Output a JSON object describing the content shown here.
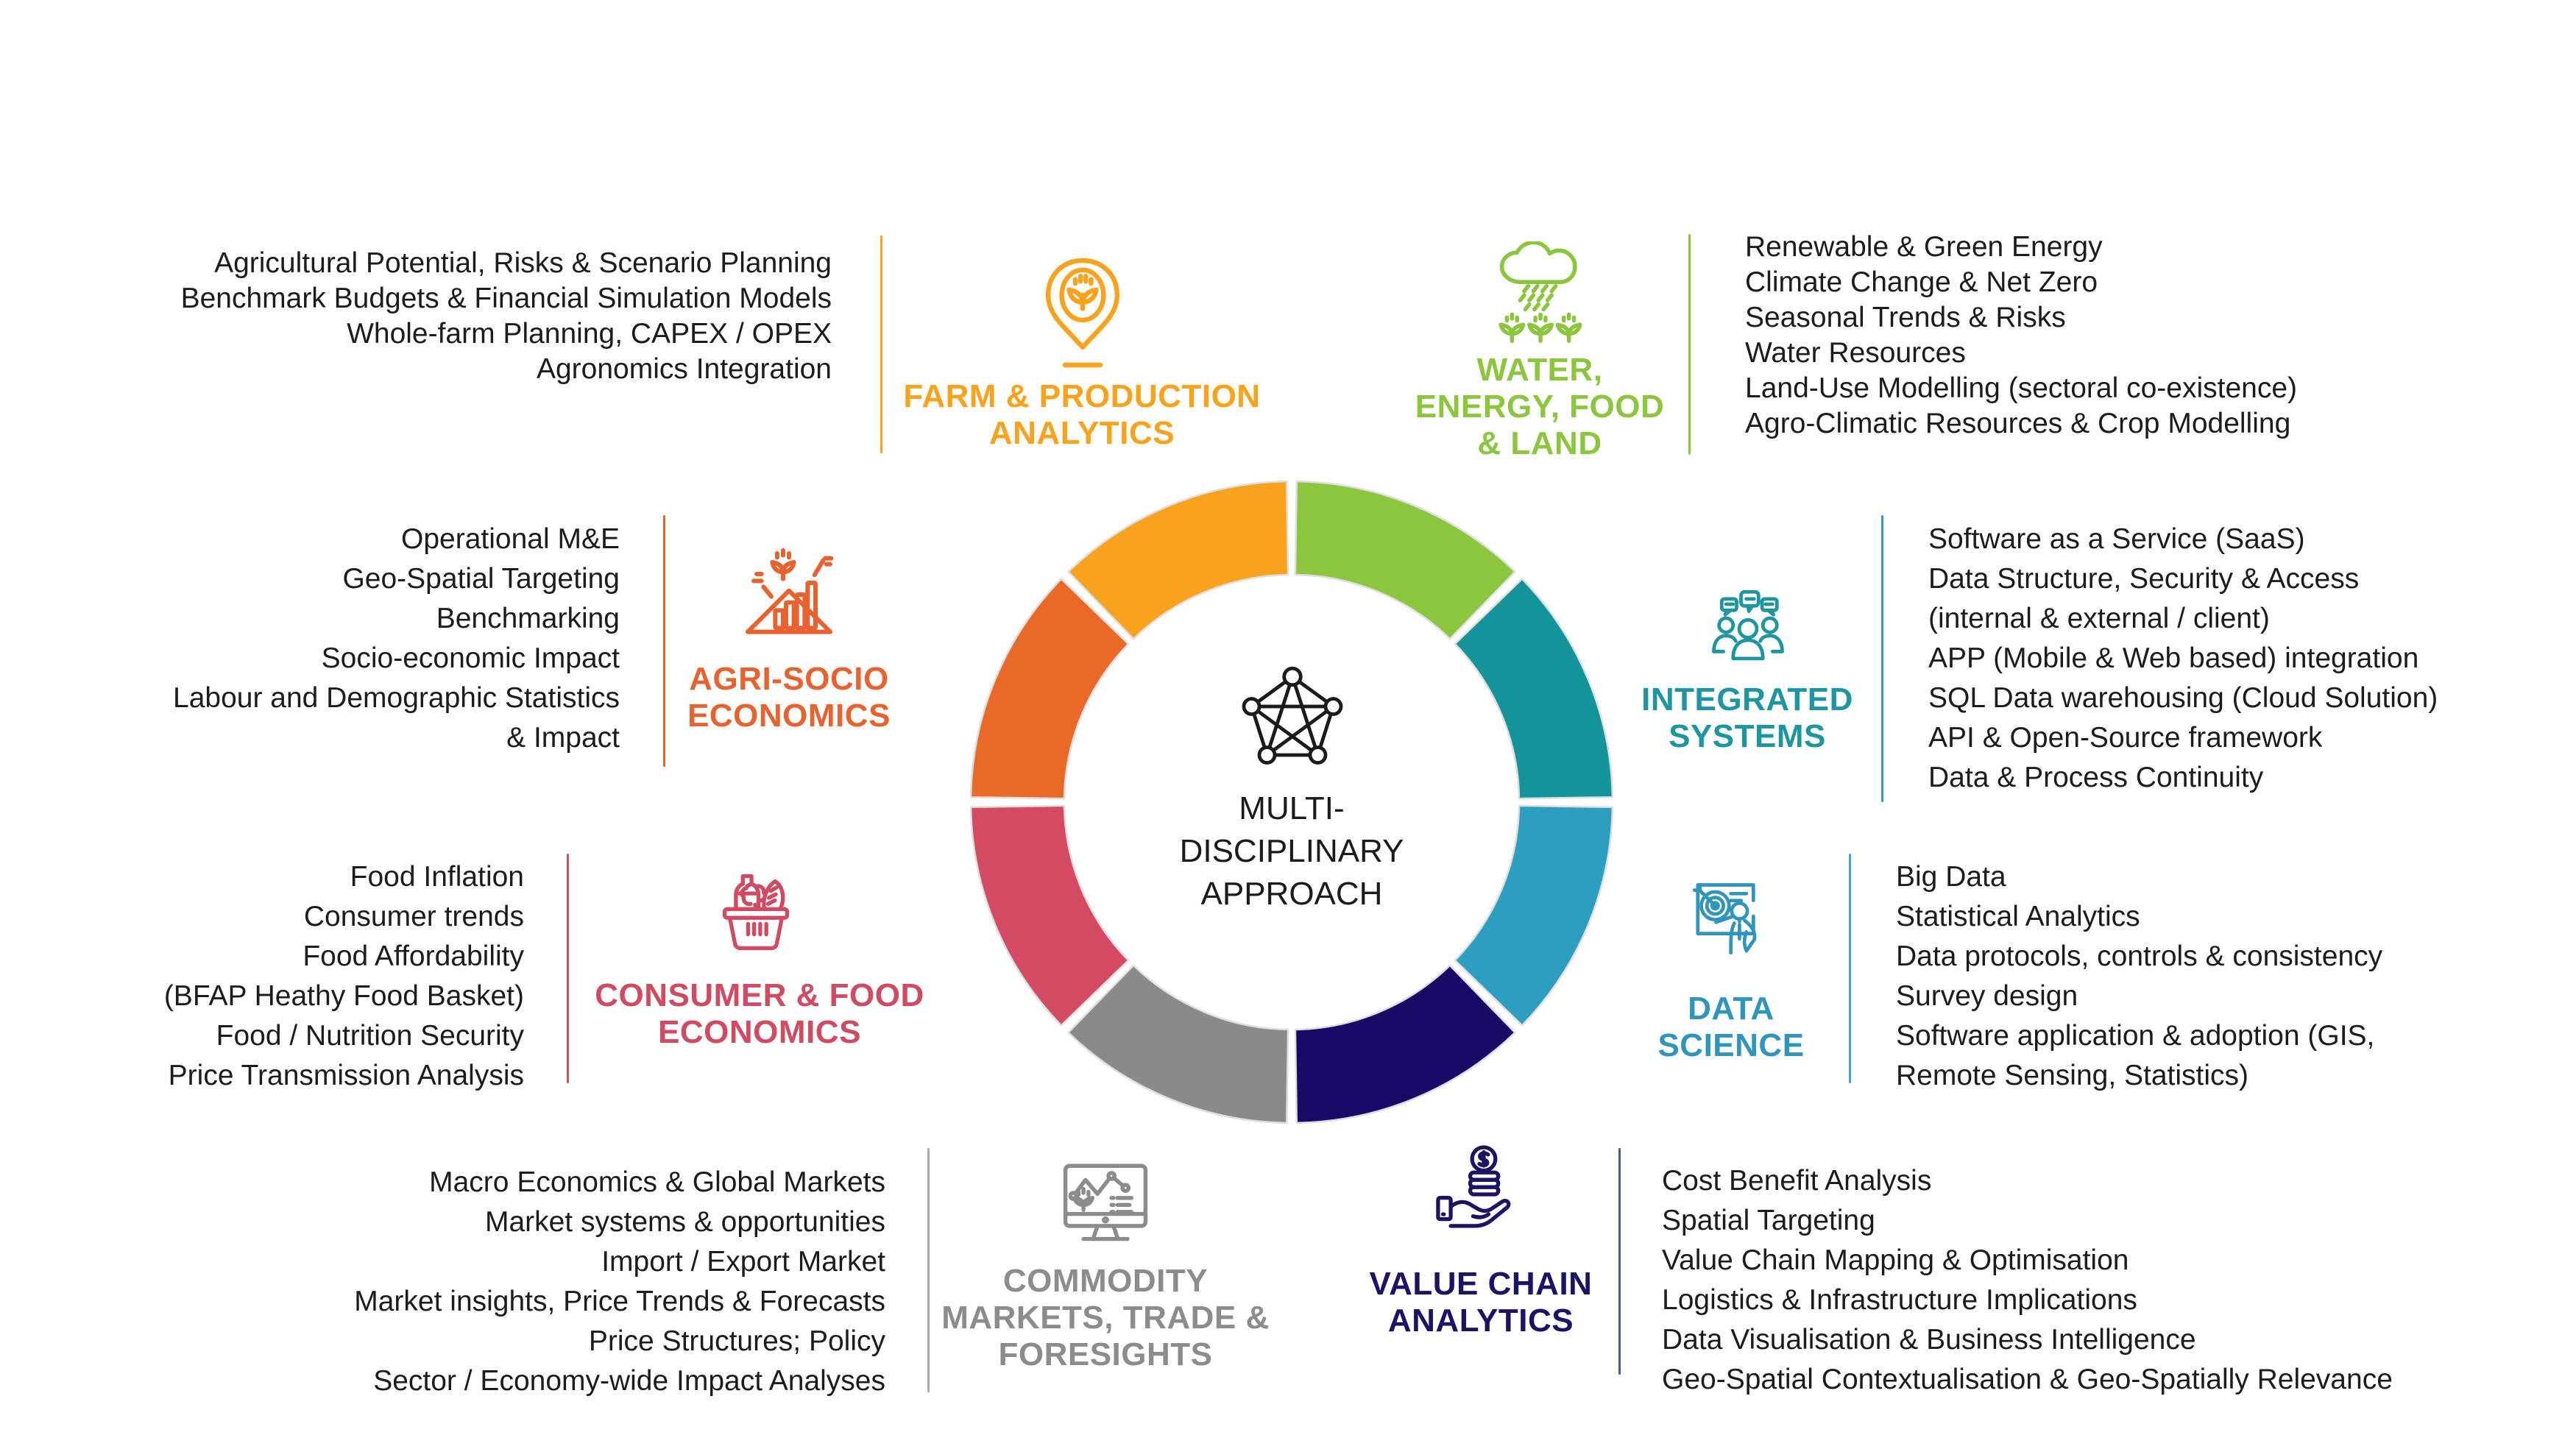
{
  "page": {
    "background": "#ffffff",
    "text_color": "#1c1c1c"
  },
  "center": {
    "label": "MULTI-\nDISCIPLINARY\nAPPROACH",
    "icon": "network-pentagon-icon",
    "icon_color": "#1b1b1b",
    "text_color": "#1b1b1b"
  },
  "donut": {
    "type": "donut-wheel",
    "rim_color": "#dedede",
    "gap_color": "#ffffff",
    "segments": [
      {
        "name": "water-energy-food-land",
        "color": "#8CC63F"
      },
      {
        "name": "integrated-systems",
        "color": "#14939B"
      },
      {
        "name": "data-science",
        "color": "#2E9EC0"
      },
      {
        "name": "value-chain-analytics",
        "color": "#150A66"
      },
      {
        "name": "commodity-markets-trade-foresights",
        "color": "#8A8A8A"
      },
      {
        "name": "consumer-food-economics",
        "color": "#D44A63"
      },
      {
        "name": "agri-socio-economics",
        "color": "#E96A28"
      },
      {
        "name": "farm-production-analytics",
        "color": "#F9A21D"
      }
    ]
  },
  "categories": {
    "farm": {
      "title": "FARM & PRODUCTION\nANALYTICS",
      "color": "#F9A21D",
      "divider_color": "#F9A21D",
      "icon": "map-pin-plant-icon",
      "items": [
        "Agricultural Potential, Risks & Scenario Planning",
        "Benchmark Budgets & Financial Simulation Models",
        "Whole-farm Planning, CAPEX / OPEX",
        "Agronomics Integration"
      ]
    },
    "water": {
      "title": "WATER,\nENERGY, FOOD\n& LAND",
      "color": "#8CC63F",
      "divider_color": "#8CC63F",
      "icon": "rain-cloud-crops-icon",
      "items": [
        "Renewable & Green Energy",
        "Climate Change & Net Zero",
        "Seasonal Trends & Risks",
        "Water Resources",
        "Land-Use Modelling (sectoral co-existence)",
        "Agro-Climatic Resources & Crop Modelling"
      ]
    },
    "agri": {
      "title": "AGRI-SOCIO\nECONOMICS",
      "color": "#E8622F",
      "divider_color": "#E8622F",
      "icon": "growth-bars-plant-icon",
      "items": [
        "Operational M&E",
        "Geo-Spatial Targeting",
        "Benchmarking",
        "Socio-economic Impact",
        "Labour and Demographic Statistics",
        "& Impact"
      ]
    },
    "integrated": {
      "title": "INTEGRATED\nSYSTEMS",
      "color": "#1D96A2",
      "divider_color": "#2AA0AC",
      "icon": "people-chat-icon",
      "items": [
        "Software as a Service (SaaS)",
        "Data Structure, Security & Access",
        "(internal & external / client)",
        "APP (Mobile & Web based) integration",
        "SQL Data warehousing (Cloud Solution)",
        "API & Open-Source framework",
        "Data & Process Continuity"
      ]
    },
    "consumer": {
      "title": "CONSUMER & FOOD\nECONOMICS",
      "color": "#D04A62",
      "divider_color": "#C9506B",
      "icon": "food-basket-icon",
      "items": [
        "Food Inflation",
        "Consumer trends",
        "Food Affordability",
        "(BFAP Heathy Food Basket)",
        "Food / Nutrition Security",
        "Price Transmission Analysis"
      ]
    },
    "datasci": {
      "title": "DATA\nSCIENCE",
      "color": "#3095BC",
      "divider_color": "#47A5C8",
      "icon": "target-presentation-icon",
      "items": [
        "Big Data",
        "Statistical Analytics",
        "Data protocols, controls & consistency",
        "Survey design",
        "Software application & adoption (GIS,",
        "Remote Sensing, Statistics)"
      ]
    },
    "commodity": {
      "title": "COMMODITY\nMARKETS, TRADE &\nFORESIGHTS",
      "color": "#8C8C8C",
      "divider_color": "#ABABAB",
      "icon": "monitor-chart-icon",
      "items": [
        "Macro Economics & Global Markets",
        "Market systems & opportunities",
        "Import / Export Market",
        "Market insights, Price Trends & Forecasts",
        "Price Structures; Policy",
        "Sector / Economy-wide Impact Analyses"
      ]
    },
    "valuechain": {
      "title": "VALUE CHAIN\nANALYTICS",
      "color": "#1B1464",
      "divider_color": "#4A5A9B",
      "icon": "coins-in-hand-icon",
      "items": [
        "Cost Benefit Analysis",
        "Spatial Targeting",
        "Value Chain Mapping & Optimisation",
        "Logistics & Infrastructure Implications",
        "Data Visualisation & Business Intelligence",
        "Geo-Spatial Contextualisation & Geo-Spatially Relevance"
      ]
    }
  }
}
